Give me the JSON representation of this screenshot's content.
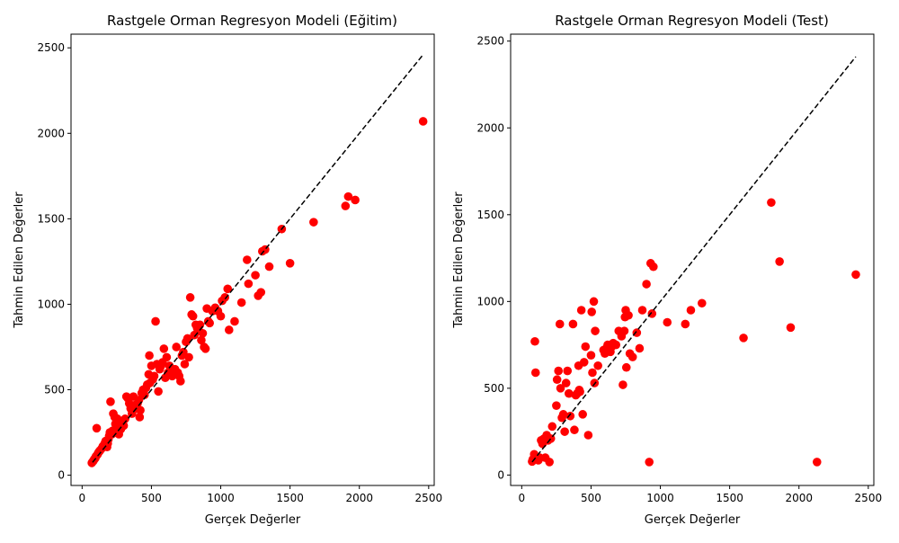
{
  "chart_data": [
    {
      "type": "scatter",
      "title": "Rastgele Orman Regresyon Modeli (Eğitim)",
      "xlabel": "Gerçek Değerler",
      "ylabel": "Tahmin Edilen Değerler",
      "xlim": [
        -80,
        2540
      ],
      "ylim": [
        -60,
        2580
      ],
      "xticks": [
        0,
        500,
        1000,
        1500,
        2000,
        2500
      ],
      "yticks": [
        0,
        500,
        1000,
        1500,
        2000,
        2500
      ],
      "grid": false,
      "point_color": "#ff0000",
      "line_color": "#000000",
      "reference_line": {
        "x": [
          75,
          2460
        ],
        "y": [
          75,
          2460
        ],
        "style": "dashed"
      },
      "points": [
        [
          70,
          72
        ],
        [
          75,
          78
        ],
        [
          80,
          82
        ],
        [
          85,
          90
        ],
        [
          90,
          95
        ],
        [
          95,
          100
        ],
        [
          100,
          110
        ],
        [
          105,
          275
        ],
        [
          110,
          120
        ],
        [
          115,
          128
        ],
        [
          120,
          135
        ],
        [
          125,
          140
        ],
        [
          130,
          145
        ],
        [
          140,
          155
        ],
        [
          150,
          170
        ],
        [
          160,
          180
        ],
        [
          165,
          190
        ],
        [
          170,
          200
        ],
        [
          180,
          165
        ],
        [
          185,
          185
        ],
        [
          190,
          210
        ],
        [
          195,
          230
        ],
        [
          200,
          250
        ],
        [
          205,
          430
        ],
        [
          210,
          245
        ],
        [
          215,
          240
        ],
        [
          220,
          260
        ],
        [
          225,
          360
        ],
        [
          230,
          250
        ],
        [
          235,
          340
        ],
        [
          240,
          300
        ],
        [
          250,
          290
        ],
        [
          255,
          330
        ],
        [
          260,
          320
        ],
        [
          265,
          240
        ],
        [
          270,
          280
        ],
        [
          275,
          310
        ],
        [
          280,
          270
        ],
        [
          290,
          300
        ],
        [
          300,
          290
        ],
        [
          310,
          330
        ],
        [
          320,
          460
        ],
        [
          330,
          450
        ],
        [
          340,
          420
        ],
        [
          350,
          390
        ],
        [
          360,
          360
        ],
        [
          370,
          460
        ],
        [
          380,
          410
        ],
        [
          390,
          390
        ],
        [
          400,
          420
        ],
        [
          410,
          440
        ],
        [
          415,
          340
        ],
        [
          420,
          380
        ],
        [
          430,
          480
        ],
        [
          440,
          500
        ],
        [
          450,
          470
        ],
        [
          460,
          510
        ],
        [
          470,
          530
        ],
        [
          480,
          590
        ],
        [
          485,
          700
        ],
        [
          490,
          540
        ],
        [
          500,
          640
        ],
        [
          510,
          560
        ],
        [
          520,
          580
        ],
        [
          530,
          900
        ],
        [
          540,
          650
        ],
        [
          550,
          490
        ],
        [
          560,
          620
        ],
        [
          570,
          640
        ],
        [
          580,
          660
        ],
        [
          590,
          740
        ],
        [
          600,
          570
        ],
        [
          610,
          690
        ],
        [
          620,
          600
        ],
        [
          630,
          640
        ],
        [
          640,
          620
        ],
        [
          650,
          580
        ],
        [
          660,
          600
        ],
        [
          670,
          620
        ],
        [
          680,
          750
        ],
        [
          690,
          600
        ],
        [
          700,
          580
        ],
        [
          710,
          550
        ],
        [
          720,
          700
        ],
        [
          730,
          720
        ],
        [
          740,
          650
        ],
        [
          750,
          780
        ],
        [
          760,
          800
        ],
        [
          770,
          690
        ],
        [
          780,
          1040
        ],
        [
          790,
          940
        ],
        [
          800,
          930
        ],
        [
          810,
          820
        ],
        [
          820,
          880
        ],
        [
          830,
          860
        ],
        [
          840,
          850
        ],
        [
          850,
          880
        ],
        [
          860,
          790
        ],
        [
          870,
          830
        ],
        [
          880,
          750
        ],
        [
          890,
          740
        ],
        [
          900,
          975
        ],
        [
          910,
          900
        ],
        [
          920,
          890
        ],
        [
          940,
          960
        ],
        [
          960,
          980
        ],
        [
          980,
          960
        ],
        [
          1000,
          930
        ],
        [
          1010,
          1020
        ],
        [
          1030,
          1040
        ],
        [
          1050,
          1090
        ],
        [
          1060,
          850
        ],
        [
          1100,
          900
        ],
        [
          1150,
          1010
        ],
        [
          1190,
          1260
        ],
        [
          1200,
          1120
        ],
        [
          1250,
          1170
        ],
        [
          1270,
          1050
        ],
        [
          1290,
          1070
        ],
        [
          1300,
          1310
        ],
        [
          1320,
          1320
        ],
        [
          1350,
          1220
        ],
        [
          1440,
          1440
        ],
        [
          1500,
          1240
        ],
        [
          1670,
          1480
        ],
        [
          1900,
          1575
        ],
        [
          1920,
          1630
        ],
        [
          1970,
          1610
        ],
        [
          2460,
          2070
        ]
      ]
    },
    {
      "type": "scatter",
      "title": "Rastgele Orman Regresyon Modeli (Test)",
      "xlabel": "Gerçek Değerler",
      "ylabel": "Tahmin Edilen Değerler",
      "xlim": [
        -80,
        2540
      ],
      "ylim": [
        -60,
        2540
      ],
      "xticks": [
        0,
        500,
        1000,
        1500,
        2000,
        2500
      ],
      "yticks": [
        0,
        500,
        1000,
        1500,
        2000,
        2500
      ],
      "grid": false,
      "point_color": "#ff0000",
      "line_color": "#000000",
      "reference_line": {
        "x": [
          75,
          2410
        ],
        "y": [
          75,
          2410
        ],
        "style": "dashed"
      },
      "points": [
        [
          75,
          78
        ],
        [
          80,
          90
        ],
        [
          90,
          120
        ],
        [
          95,
          770
        ],
        [
          100,
          590
        ],
        [
          110,
          95
        ],
        [
          120,
          85
        ],
        [
          130,
          100
        ],
        [
          140,
          200
        ],
        [
          150,
          180
        ],
        [
          160,
          210
        ],
        [
          170,
          100
        ],
        [
          180,
          230
        ],
        [
          190,
          200
        ],
        [
          200,
          75
        ],
        [
          210,
          210
        ],
        [
          220,
          280
        ],
        [
          250,
          400
        ],
        [
          255,
          550
        ],
        [
          265,
          600
        ],
        [
          275,
          870
        ],
        [
          280,
          500
        ],
        [
          290,
          330
        ],
        [
          300,
          350
        ],
        [
          310,
          250
        ],
        [
          320,
          530
        ],
        [
          330,
          600
        ],
        [
          340,
          470
        ],
        [
          350,
          340
        ],
        [
          370,
          870
        ],
        [
          380,
          260
        ],
        [
          390,
          460
        ],
        [
          400,
          470
        ],
        [
          410,
          630
        ],
        [
          415,
          490
        ],
        [
          420,
          480
        ],
        [
          430,
          950
        ],
        [
          440,
          350
        ],
        [
          450,
          650
        ],
        [
          460,
          740
        ],
        [
          480,
          230
        ],
        [
          500,
          690
        ],
        [
          505,
          940
        ],
        [
          510,
          590
        ],
        [
          520,
          1000
        ],
        [
          525,
          530
        ],
        [
          530,
          830
        ],
        [
          550,
          630
        ],
        [
          590,
          720
        ],
        [
          600,
          700
        ],
        [
          610,
          730
        ],
        [
          620,
          750
        ],
        [
          640,
          710
        ],
        [
          650,
          740
        ],
        [
          660,
          760
        ],
        [
          680,
          750
        ],
        [
          700,
          830
        ],
        [
          720,
          800
        ],
        [
          730,
          520
        ],
        [
          740,
          830
        ],
        [
          745,
          910
        ],
        [
          750,
          950
        ],
        [
          755,
          620
        ],
        [
          770,
          920
        ],
        [
          780,
          700
        ],
        [
          800,
          680
        ],
        [
          830,
          820
        ],
        [
          850,
          730
        ],
        [
          870,
          950
        ],
        [
          900,
          1100
        ],
        [
          920,
          75
        ],
        [
          930,
          1220
        ],
        [
          940,
          930
        ],
        [
          950,
          1200
        ],
        [
          1050,
          880
        ],
        [
          1180,
          870
        ],
        [
          1220,
          950
        ],
        [
          1300,
          990
        ],
        [
          1600,
          790
        ],
        [
          1800,
          1570
        ],
        [
          1860,
          1230
        ],
        [
          1940,
          850
        ],
        [
          2130,
          75
        ],
        [
          2410,
          1155
        ]
      ]
    }
  ]
}
